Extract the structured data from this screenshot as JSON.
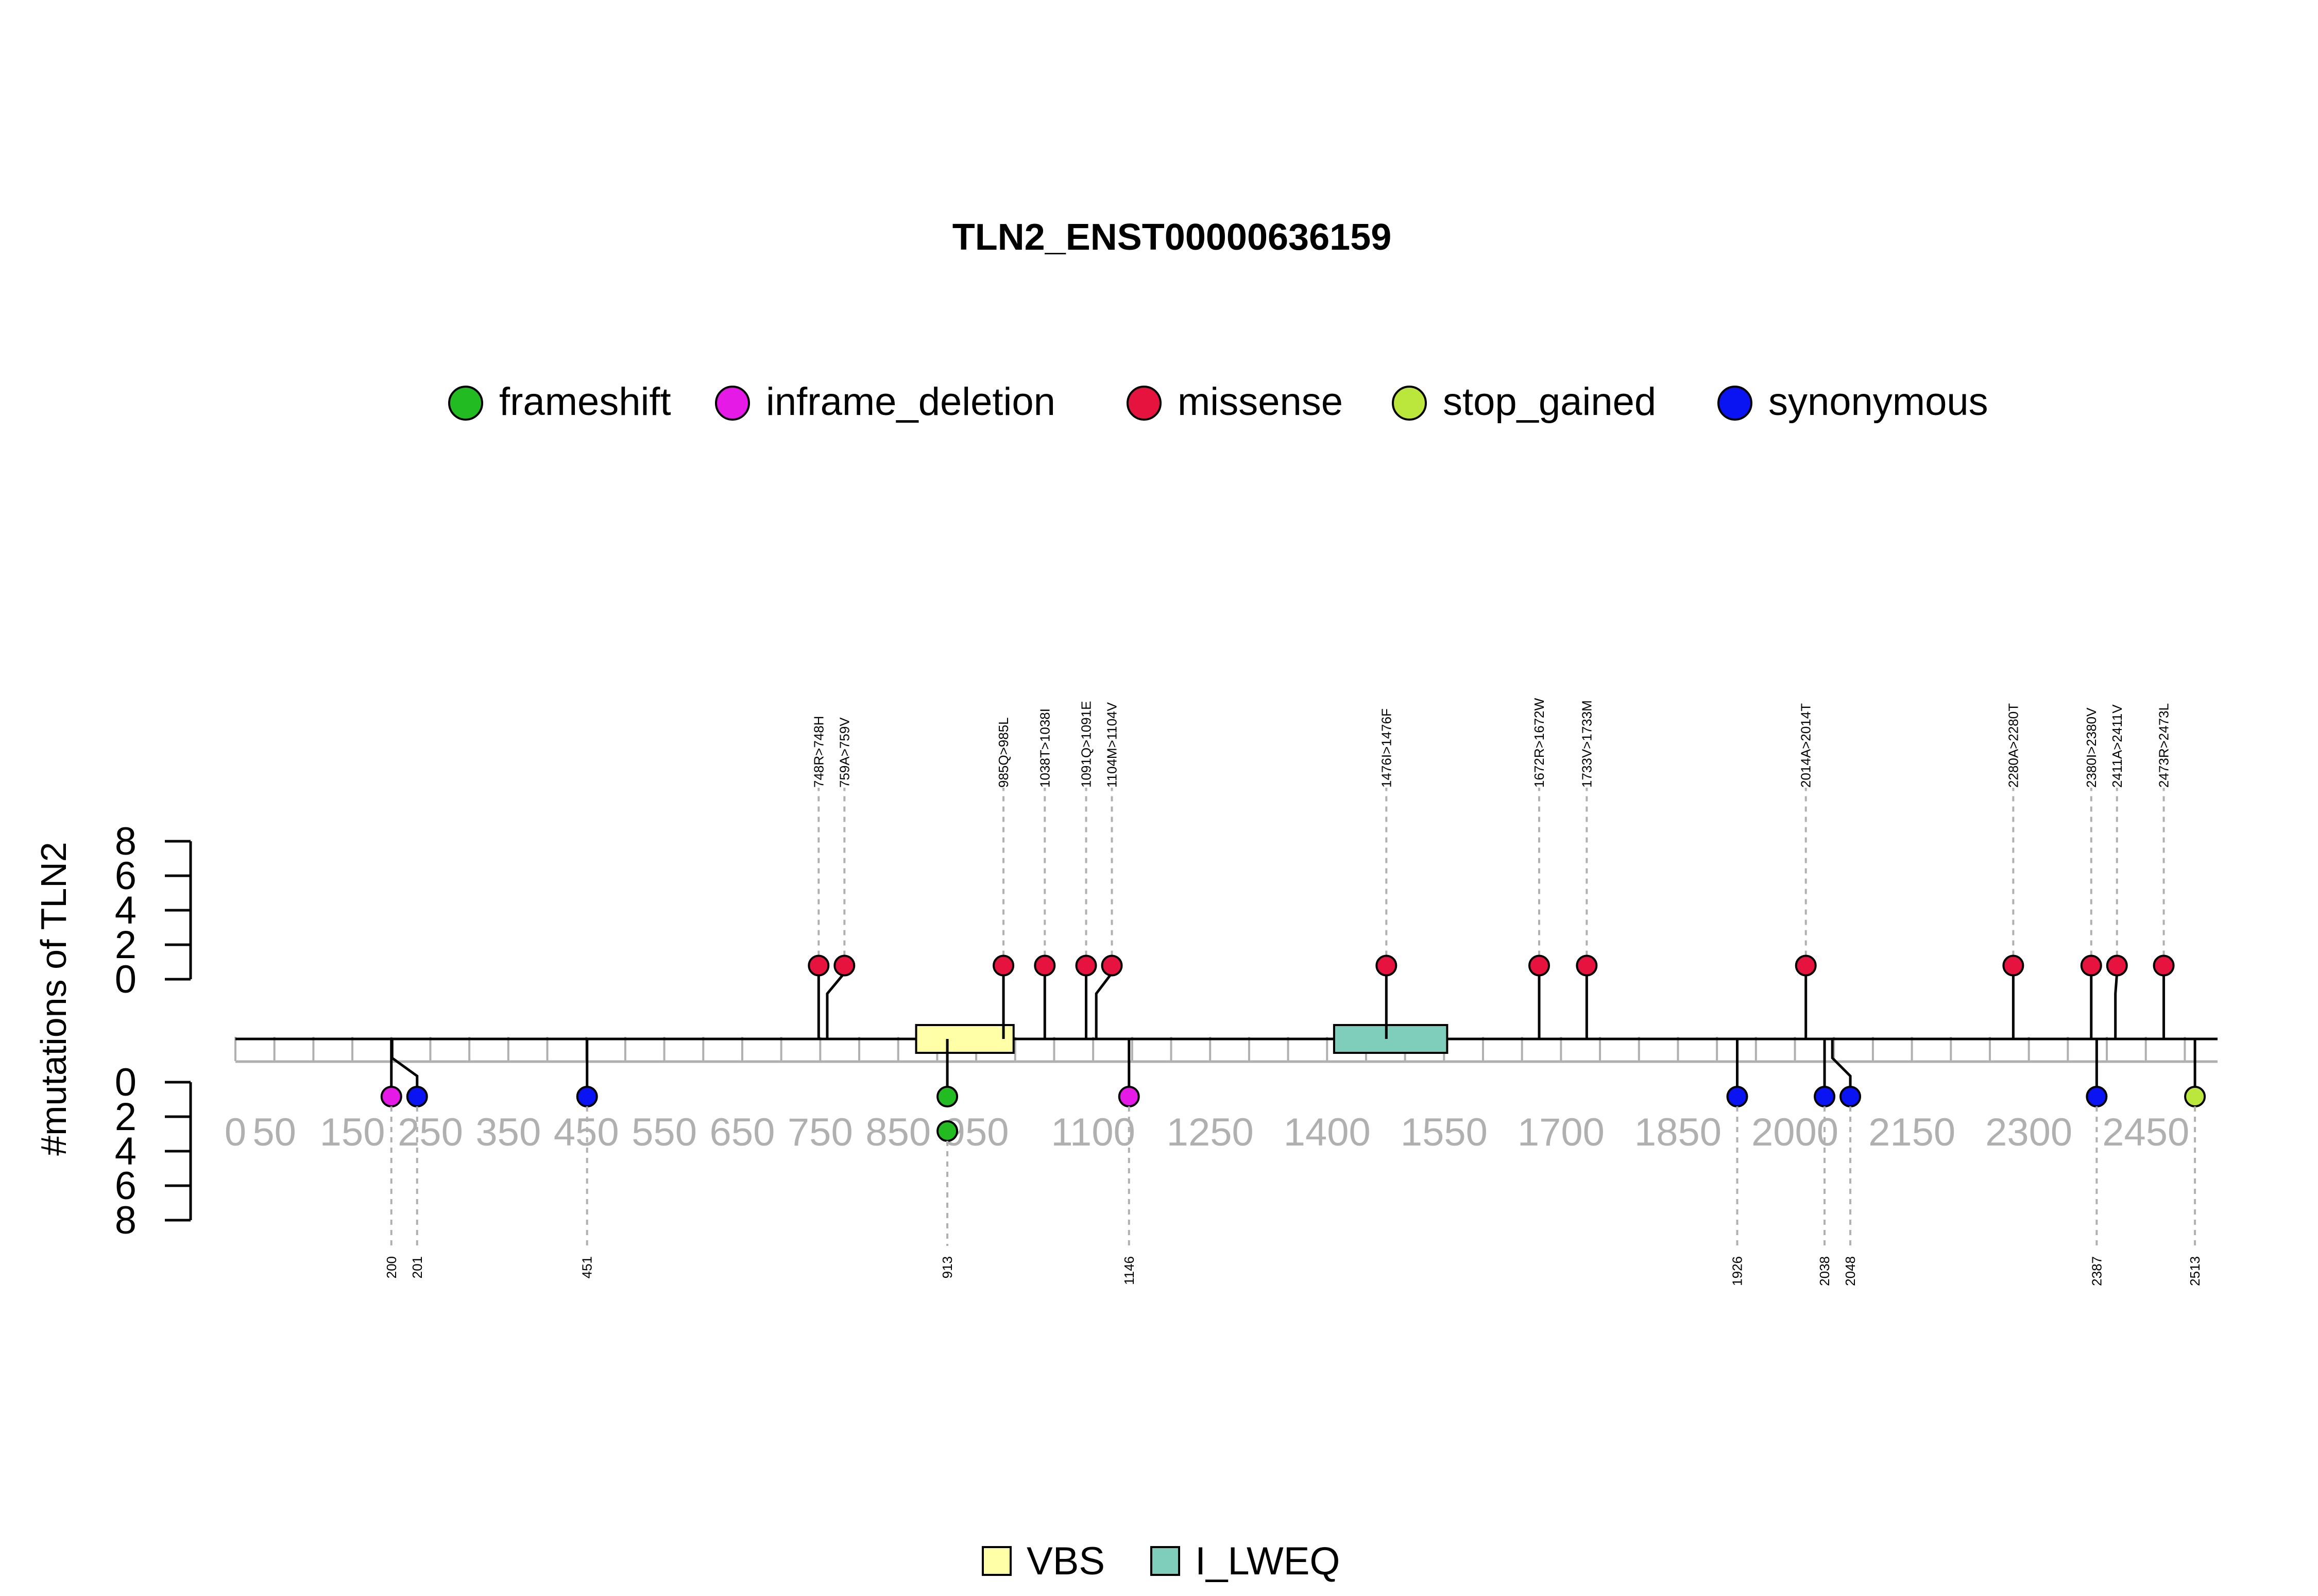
{
  "chart_data": {
    "type": "lollipop",
    "title": "TLN2_ENST00000636159",
    "ylabel": "#mutations of TLN2",
    "xlim": [
      0,
      2542
    ],
    "x_ticks": [
      0,
      50,
      150,
      250,
      350,
      450,
      550,
      650,
      750,
      850,
      950,
      1100,
      1250,
      1400,
      1550,
      1700,
      1850,
      2000,
      2150,
      2300,
      2450
    ],
    "x_tick_labels": [
      "0",
      "50",
      "150",
      "250",
      "350",
      "450",
      "550",
      "650",
      "750",
      "850",
      "950",
      "1100",
      "1250",
      "1400",
      "1550",
      "1700",
      "1850",
      "2000",
      "2150",
      "2300",
      "2450"
    ],
    "x_minor_tick_step": 50,
    "y_top": {
      "ticks": [
        0,
        2,
        4,
        6,
        8
      ],
      "range": [
        0,
        8
      ]
    },
    "y_bottom": {
      "ticks": [
        0,
        2,
        4,
        6,
        8
      ],
      "range": [
        0,
        8
      ]
    },
    "legend_mutation_types": [
      {
        "name": "frameshift",
        "color": "#22bb22"
      },
      {
        "name": "inframe_deletion",
        "color": "#e61ae6"
      },
      {
        "name": "missense",
        "color": "#e6133f"
      },
      {
        "name": "stop_gained",
        "color": "#bbe63c"
      },
      {
        "name": "synonymous",
        "color": "#0a14f2"
      }
    ],
    "domains": [
      {
        "name": "VBS",
        "start": 873,
        "end": 998,
        "color": "#ffffa8"
      },
      {
        "name": "I_LWEQ",
        "start": 1409,
        "end": 1554,
        "color": "#7fcdbb"
      }
    ],
    "mutations_top": [
      {
        "position": 748,
        "label": "748R>748H",
        "type": "missense",
        "count": 1
      },
      {
        "position": 759,
        "label": "759A>759V",
        "type": "missense",
        "count": 1
      },
      {
        "position": 985,
        "label": "985Q>985L",
        "type": "missense",
        "count": 1
      },
      {
        "position": 1038,
        "label": "1038T>1038I",
        "type": "missense",
        "count": 1
      },
      {
        "position": 1091,
        "label": "1091Q>1091E",
        "type": "missense",
        "count": 1
      },
      {
        "position": 1104,
        "label": "1104M>1104V",
        "type": "missense",
        "count": 1
      },
      {
        "position": 1476,
        "label": "1476I>1476F",
        "type": "missense",
        "count": 1
      },
      {
        "position": 1672,
        "label": "1672R>1672W",
        "type": "missense",
        "count": 1
      },
      {
        "position": 1733,
        "label": "1733V>1733M",
        "type": "missense",
        "count": 1
      },
      {
        "position": 2014,
        "label": "2014A>2014T",
        "type": "missense",
        "count": 1
      },
      {
        "position": 2280,
        "label": "2280A>2280T",
        "type": "missense",
        "count": 1
      },
      {
        "position": 2380,
        "label": "2380I>2380V",
        "type": "missense",
        "count": 1
      },
      {
        "position": 2411,
        "label": "2411A>2411V",
        "type": "missense",
        "count": 1
      },
      {
        "position": 2473,
        "label": "2473R>2473L",
        "type": "missense",
        "count": 1
      }
    ],
    "mutations_bottom": [
      {
        "position": 200,
        "label": "200",
        "type": "inframe_deletion",
        "count": 1
      },
      {
        "position": 201,
        "label": "201",
        "type": "synonymous",
        "count": 1
      },
      {
        "position": 451,
        "label": "451",
        "type": "synonymous",
        "count": 1
      },
      {
        "position": 913,
        "label": "913",
        "type": "frameshift",
        "count": 2
      },
      {
        "position": 1146,
        "label": "1146",
        "type": "inframe_deletion",
        "count": 1
      },
      {
        "position": 1926,
        "label": "1926",
        "type": "synonymous",
        "count": 1
      },
      {
        "position": 2038,
        "label": "2038",
        "type": "synonymous",
        "count": 1
      },
      {
        "position": 2048,
        "label": "2048",
        "type": "synonymous",
        "count": 1
      },
      {
        "position": 2387,
        "label": "2387",
        "type": "synonymous",
        "count": 1
      },
      {
        "position": 2513,
        "label": "2513",
        "type": "stop_gained",
        "count": 1
      }
    ]
  }
}
